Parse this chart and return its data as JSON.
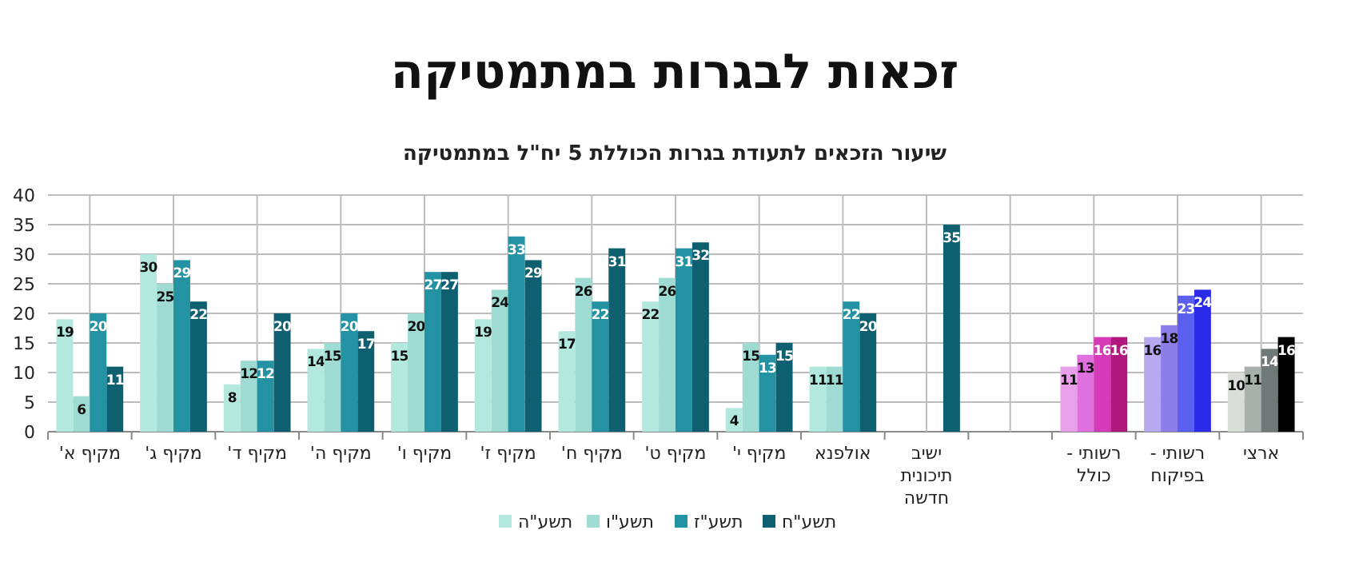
{
  "chart_data": {
    "type": "bar",
    "title": "זכאות לבגרות במתמטיקה",
    "subtitle": "שיעור הזכאים לתעודת בגרות הכוללת 5 יח\"ל במתמטיקה",
    "categories": [
      "מקיף א'",
      "מקיף ג'",
      "מקיף ד'",
      "מקיף ה'",
      "מקיף ו'",
      "מקיף ז'",
      "מקיף ח'",
      "מקיף ט'",
      "מקיף י'",
      "אולפנא",
      "ישיב תיכונית חדשה",
      null,
      "רשותי - כולל",
      "רשותי - בפיקוח",
      "ארצי"
    ],
    "series": [
      {
        "name": "תשע\"ה",
        "color": "#b3e8df",
        "values": [
          19,
          30,
          8,
          14,
          15,
          19,
          17,
          22,
          4,
          11,
          null,
          null,
          11,
          16,
          10
        ],
        "colors": [
          "#b3e8df",
          "#b3e8df",
          "#b3e8df",
          "#b3e8df",
          "#b3e8df",
          "#b3e8df",
          "#b3e8df",
          "#b3e8df",
          "#b3e8df",
          "#b3e8df",
          null,
          null,
          "#e9a0ea",
          "#b8a8f0",
          "#d8ddd8"
        ]
      },
      {
        "name": "תשע\"ו",
        "color": "#9ddbd3",
        "values": [
          6,
          25,
          12,
          15,
          20,
          24,
          26,
          26,
          15,
          11,
          null,
          null,
          13,
          18,
          11
        ],
        "colors": [
          "#9ddbd3",
          "#9ddbd3",
          "#9ddbd3",
          "#9ddbd3",
          "#9ddbd3",
          "#9ddbd3",
          "#9ddbd3",
          "#9ddbd3",
          "#9ddbd3",
          "#9ddbd3",
          null,
          null,
          "#e070e0",
          "#8c7de8",
          "#a8b0ac"
        ]
      },
      {
        "name": "תשע\"ז",
        "color": "#2393a3",
        "values": [
          20,
          29,
          12,
          20,
          27,
          33,
          22,
          31,
          13,
          22,
          null,
          null,
          16,
          23,
          14
        ],
        "colors": [
          "#2393a3",
          "#2393a3",
          "#2393a3",
          "#2393a3",
          "#2393a3",
          "#2393a3",
          "#2393a3",
          "#2393a3",
          "#2393a3",
          "#2393a3",
          null,
          null,
          "#d63ab8",
          "#5a5ff0",
          "#6f7a78"
        ]
      },
      {
        "name": "תשע\"ח",
        "color": "#0e5f70",
        "values": [
          11,
          22,
          20,
          17,
          27,
          29,
          31,
          32,
          15,
          20,
          35,
          null,
          16,
          24,
          16
        ],
        "colors": [
          "#0e5f70",
          "#0e5f70",
          "#0e5f70",
          "#0e5f70",
          "#0e5f70",
          "#0e5f70",
          "#0e5f70",
          "#0e5f70",
          "#0e5f70",
          "#0e5f70",
          "#0e5f70",
          null,
          "#b0187d",
          "#2a2ae8",
          "#000000"
        ]
      }
    ],
    "ylim": [
      0,
      40
    ],
    "yticks": [
      0,
      5,
      10,
      15,
      20,
      25,
      30,
      35,
      40
    ],
    "grid": true,
    "legend": "bottom",
    "data_labels": true
  }
}
